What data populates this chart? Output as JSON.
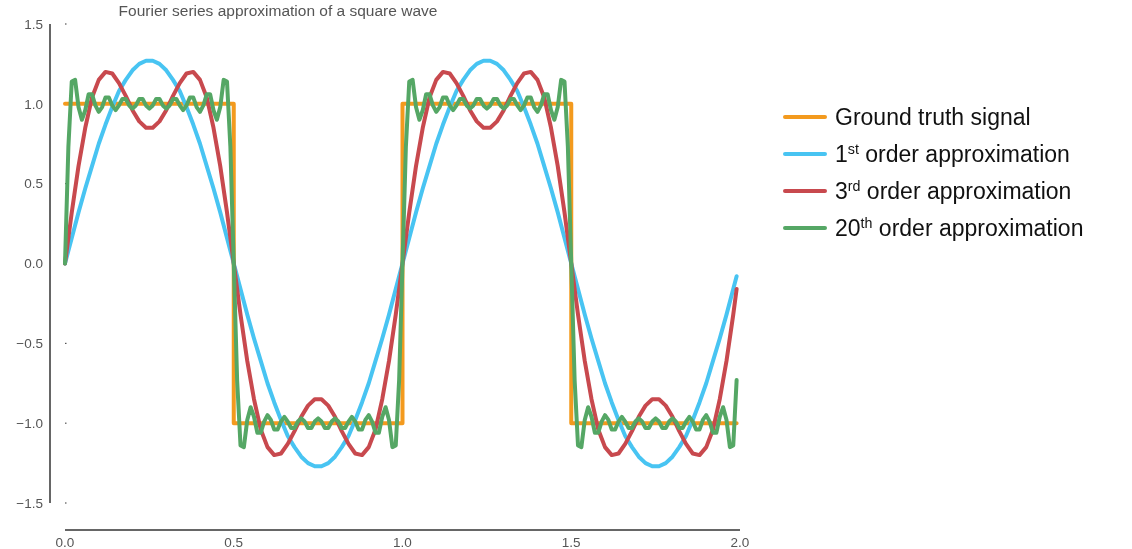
{
  "chart_data": {
    "type": "line",
    "title": "Fourier series approximation of a square wave",
    "x": [
      0,
      0.01,
      0.02,
      0.03,
      0.04,
      0.05,
      0.06,
      0.07,
      0.08,
      0.09,
      0.1,
      0.11,
      0.12,
      0.13,
      0.14,
      0.15,
      0.16,
      0.17,
      0.18,
      0.19,
      0.2,
      0.21,
      0.22,
      0.23,
      0.24,
      0.25,
      0.26,
      0.27,
      0.28,
      0.29,
      0.3,
      0.31,
      0.32,
      0.33,
      0.34,
      0.35,
      0.36,
      0.37,
      0.38,
      0.39,
      0.4,
      0.41,
      0.42,
      0.43,
      0.44,
      0.45,
      0.46,
      0.47,
      0.48,
      0.49,
      0.5,
      0.51,
      0.52,
      0.53,
      0.54,
      0.55,
      0.56,
      0.57,
      0.58,
      0.59,
      0.6,
      0.61,
      0.62,
      0.63,
      0.64,
      0.65,
      0.66,
      0.67,
      0.68,
      0.69,
      0.7,
      0.71,
      0.72,
      0.73,
      0.74,
      0.75,
      0.76,
      0.77,
      0.78,
      0.79,
      0.8,
      0.81,
      0.82,
      0.83,
      0.84,
      0.85,
      0.86,
      0.87,
      0.88,
      0.89,
      0.9,
      0.91,
      0.92,
      0.93,
      0.94,
      0.95,
      0.96,
      0.97,
      0.98,
      0.99,
      1,
      1.01,
      1.02,
      1.03,
      1.04,
      1.05,
      1.06,
      1.07,
      1.08,
      1.09,
      1.1,
      1.11,
      1.12,
      1.13,
      1.14,
      1.15,
      1.16,
      1.17,
      1.18,
      1.19,
      1.2,
      1.21,
      1.22,
      1.23,
      1.24,
      1.25,
      1.26,
      1.27,
      1.28,
      1.29,
      1.3,
      1.31,
      1.32,
      1.33,
      1.34,
      1.35,
      1.36,
      1.37,
      1.38,
      1.39,
      1.4,
      1.41,
      1.42,
      1.43,
      1.44,
      1.45,
      1.46,
      1.47,
      1.48,
      1.49,
      1.5,
      1.51,
      1.52,
      1.53,
      1.54,
      1.55,
      1.56,
      1.57,
      1.58,
      1.59,
      1.6,
      1.61,
      1.62,
      1.63,
      1.64,
      1.65,
      1.66,
      1.67,
      1.68,
      1.69,
      1.7,
      1.71,
      1.72,
      1.73,
      1.74,
      1.75,
      1.76,
      1.77,
      1.78,
      1.79,
      1.8,
      1.81,
      1.82,
      1.83,
      1.84,
      1.85,
      1.86,
      1.87,
      1.88,
      1.89,
      1.9,
      1.91,
      1.92,
      1.93,
      1.94,
      1.95,
      1.96,
      1.97,
      1.98,
      1.99
    ],
    "series": [
      {
        "name": "Ground truth signal",
        "color": "#f39a1e",
        "x": [
          0,
          0.5,
          0.5,
          1,
          1,
          1.5,
          1.5,
          1.99
        ],
        "values": [
          1,
          1,
          -1,
          -1,
          1,
          1,
          -1,
          -1
        ]
      },
      {
        "name": "1$^{st}$ order approximation",
        "color": "#48c4f2",
        "x": [
          0,
          0.02,
          0.04,
          0.06,
          0.08,
          0.1,
          0.12,
          0.14,
          0.16,
          0.18,
          0.2,
          0.22,
          0.24,
          0.26,
          0.28,
          0.3,
          0.32,
          0.34,
          0.36,
          0.38,
          0.4,
          0.42,
          0.44,
          0.46,
          0.48,
          0.5,
          0.52,
          0.54,
          0.56,
          0.58,
          0.6,
          0.62,
          0.64,
          0.66,
          0.68,
          0.7,
          0.72,
          0.74,
          0.76,
          0.78,
          0.8,
          0.82,
          0.84,
          0.86,
          0.88,
          0.9,
          0.92,
          0.94,
          0.96,
          0.98,
          1,
          1.02,
          1.04,
          1.06,
          1.08,
          1.1,
          1.12,
          1.14,
          1.16,
          1.18,
          1.2,
          1.22,
          1.24,
          1.26,
          1.28,
          1.3,
          1.32,
          1.34,
          1.36,
          1.38,
          1.4,
          1.42,
          1.44,
          1.46,
          1.48,
          1.5,
          1.52,
          1.54,
          1.56,
          1.58,
          1.6,
          1.62,
          1.64,
          1.66,
          1.68,
          1.7,
          1.72,
          1.74,
          1.76,
          1.78,
          1.8,
          1.82,
          1.84,
          1.86,
          1.88,
          1.9,
          1.92,
          1.94,
          1.96,
          1.98,
          1.99
        ],
        "values": [
          0,
          0.16,
          0.32,
          0.47,
          0.61,
          0.75,
          0.87,
          0.98,
          1.08,
          1.15,
          1.21,
          1.25,
          1.27,
          1.27,
          1.25,
          1.21,
          1.15,
          1.08,
          0.98,
          0.87,
          0.75,
          0.61,
          0.47,
          0.32,
          0.16,
          0,
          -0.16,
          -0.32,
          -0.47,
          -0.61,
          -0.75,
          -0.87,
          -0.98,
          -1.08,
          -1.15,
          -1.21,
          -1.25,
          -1.27,
          -1.27,
          -1.25,
          -1.21,
          -1.15,
          -1.08,
          -0.98,
          -0.87,
          -0.75,
          -0.61,
          -0.47,
          -0.32,
          -0.16,
          0,
          0.16,
          0.32,
          0.47,
          0.61,
          0.75,
          0.87,
          0.98,
          1.08,
          1.15,
          1.21,
          1.25,
          1.27,
          1.27,
          1.25,
          1.21,
          1.15,
          1.08,
          0.98,
          0.87,
          0.75,
          0.61,
          0.47,
          0.32,
          0.16,
          0,
          -0.16,
          -0.32,
          -0.47,
          -0.61,
          -0.75,
          -0.87,
          -0.98,
          -1.08,
          -1.15,
          -1.21,
          -1.25,
          -1.27,
          -1.27,
          -1.25,
          -1.21,
          -1.15,
          -1.08,
          -0.98,
          -0.87,
          -0.75,
          -0.61,
          -0.47,
          -0.32,
          -0.16,
          -0.08
        ]
      },
      {
        "name": "3$^{rd}$ order approximation",
        "color": "#c8494e",
        "x": [
          0,
          0.02,
          0.04,
          0.06,
          0.08,
          0.1,
          0.12,
          0.14,
          0.16,
          0.18,
          0.2,
          0.22,
          0.24,
          0.26,
          0.28,
          0.3,
          0.32,
          0.34,
          0.36,
          0.38,
          0.4,
          0.42,
          0.44,
          0.46,
          0.48,
          0.5,
          0.52,
          0.54,
          0.56,
          0.58,
          0.6,
          0.62,
          0.64,
          0.66,
          0.68,
          0.7,
          0.72,
          0.74,
          0.76,
          0.78,
          0.8,
          0.82,
          0.84,
          0.86,
          0.88,
          0.9,
          0.92,
          0.94,
          0.96,
          0.98,
          1,
          1.02,
          1.04,
          1.06,
          1.08,
          1.1,
          1.12,
          1.14,
          1.16,
          1.18,
          1.2,
          1.22,
          1.24,
          1.26,
          1.28,
          1.3,
          1.32,
          1.34,
          1.36,
          1.38,
          1.4,
          1.42,
          1.44,
          1.46,
          1.48,
          1.5,
          1.52,
          1.54,
          1.56,
          1.58,
          1.6,
          1.62,
          1.64,
          1.66,
          1.68,
          1.7,
          1.72,
          1.74,
          1.76,
          1.78,
          1.8,
          1.82,
          1.84,
          1.86,
          1.88,
          1.9,
          1.92,
          1.94,
          1.96,
          1.98,
          1.99
        ],
        "values": [
          0,
          0.32,
          0.61,
          0.85,
          1.04,
          1.15,
          1.2,
          1.19,
          1.13,
          1.05,
          0.96,
          0.89,
          0.85,
          0.85,
          0.89,
          0.96,
          1.05,
          1.13,
          1.19,
          1.2,
          1.15,
          1.04,
          0.85,
          0.61,
          0.32,
          0,
          -0.32,
          -0.61,
          -0.85,
          -1.04,
          -1.15,
          -1.2,
          -1.19,
          -1.13,
          -1.05,
          -0.96,
          -0.89,
          -0.85,
          -0.85,
          -0.89,
          -0.96,
          -1.05,
          -1.13,
          -1.19,
          -1.2,
          -1.15,
          -1.04,
          -0.85,
          -0.61,
          -0.32,
          0,
          0.32,
          0.61,
          0.85,
          1.04,
          1.15,
          1.2,
          1.19,
          1.13,
          1.05,
          0.96,
          0.89,
          0.85,
          0.85,
          0.89,
          0.96,
          1.05,
          1.13,
          1.19,
          1.2,
          1.15,
          1.04,
          0.85,
          0.61,
          0.32,
          0,
          -0.32,
          -0.61,
          -0.85,
          -1.04,
          -1.15,
          -1.2,
          -1.19,
          -1.13,
          -1.05,
          -0.96,
          -0.89,
          -0.85,
          -0.85,
          -0.89,
          -0.96,
          -1.05,
          -1.13,
          -1.19,
          -1.2,
          -1.15,
          -1.04,
          -0.85,
          -0.61,
          -0.32,
          -0.16
        ]
      },
      {
        "name": "20$^{th}$ order approximation",
        "color": "#55a765",
        "values": [
          0,
          0.73,
          1.14,
          1.15,
          0.98,
          0.9,
          0.96,
          1.06,
          1.06,
          0.99,
          0.95,
          0.98,
          1.04,
          1.04,
          0.99,
          0.96,
          0.99,
          1.03,
          1.03,
          0.99,
          0.97,
          0.99,
          1.03,
          1.03,
          0.99,
          0.97,
          0.99,
          1.03,
          1.03,
          0.99,
          0.97,
          0.99,
          1.03,
          1.03,
          0.99,
          0.96,
          0.99,
          1.04,
          1.04,
          0.98,
          0.95,
          0.99,
          1.06,
          1.06,
          0.96,
          0.9,
          0.98,
          1.15,
          1.14,
          0.73,
          0,
          -0.73,
          -1.14,
          -1.15,
          -0.98,
          -0.9,
          -0.96,
          -1.06,
          -1.06,
          -0.99,
          -0.95,
          -0.98,
          -1.04,
          -1.04,
          -0.99,
          -0.96,
          -0.99,
          -1.03,
          -1.03,
          -0.99,
          -0.97,
          -0.99,
          -1.03,
          -1.03,
          -0.99,
          -0.97,
          -0.99,
          -1.03,
          -1.03,
          -0.99,
          -0.97,
          -0.99,
          -1.03,
          -1.03,
          -0.99,
          -0.96,
          -0.99,
          -1.04,
          -1.04,
          -0.98,
          -0.95,
          -0.99,
          -1.06,
          -1.06,
          -0.96,
          -0.9,
          -0.98,
          -1.15,
          -1.14,
          -0.73,
          0,
          0.73,
          1.14,
          1.15,
          0.98,
          0.9,
          0.96,
          1.06,
          1.06,
          0.99,
          0.95,
          0.98,
          1.04,
          1.04,
          0.99,
          0.96,
          0.99,
          1.03,
          1.03,
          0.99,
          0.97,
          0.99,
          1.03,
          1.03,
          0.99,
          0.97,
          0.99,
          1.03,
          1.03,
          0.99,
          0.97,
          0.99,
          1.03,
          1.03,
          0.99,
          0.96,
          0.99,
          1.04,
          1.04,
          0.98,
          0.95,
          0.99,
          1.06,
          1.06,
          0.96,
          0.9,
          0.98,
          1.15,
          1.14,
          0.73,
          0,
          -0.73,
          -1.14,
          -1.15,
          -0.98,
          -0.9,
          -0.96,
          -1.06,
          -1.06,
          -0.99,
          -0.95,
          -0.98,
          -1.04,
          -1.04,
          -0.99,
          -0.96,
          -0.99,
          -1.03,
          -1.03,
          -0.99,
          -0.97,
          -0.99,
          -1.03,
          -1.03,
          -0.99,
          -0.97,
          -0.99,
          -1.03,
          -1.03,
          -0.99,
          -0.97,
          -0.99,
          -1.03,
          -1.03,
          -0.99,
          -0.96,
          -0.99,
          -1.04,
          -1.04,
          -0.98,
          -0.95,
          -0.99,
          -1.06,
          -1.06,
          -0.96,
          -0.9,
          -0.98,
          -1.15,
          -1.14,
          -0.73
        ]
      }
    ],
    "xlim": [
      0,
      2
    ],
    "ylim": [
      -1.5,
      1.5
    ],
    "xticks": [
      {
        "value": 0,
        "label": "0.0"
      },
      {
        "value": 0.5,
        "label": "0.5"
      },
      {
        "value": 1,
        "label": "1.0"
      },
      {
        "value": 1.5,
        "label": "1.5"
      },
      {
        "value": 2,
        "label": "2.0"
      }
    ],
    "yticks": [
      {
        "value": -1.5,
        "label": "−1.5"
      },
      {
        "value": -1,
        "label": "−1.0"
      },
      {
        "value": -0.5,
        "label": "−0.5"
      },
      {
        "value": 0,
        "label": "0.0"
      },
      {
        "value": 0.5,
        "label": "0.5"
      },
      {
        "value": 1,
        "label": "1.0"
      },
      {
        "value": 1.5,
        "label": "1.5"
      }
    ],
    "legend": "right",
    "line_style": "solid",
    "marker": "none",
    "grid": false
  }
}
